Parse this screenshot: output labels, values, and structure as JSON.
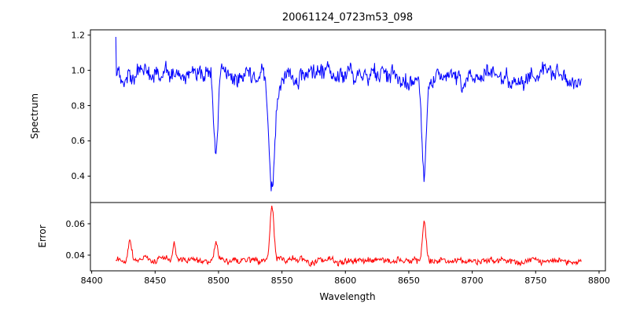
{
  "chart_data": {
    "type": "line",
    "title": "20061124_0723m53_098",
    "xlabel": "Wavelength",
    "legend": "none",
    "grid": false,
    "seed": 20061124,
    "x_axis": {
      "lim": [
        8399,
        8805
      ],
      "data_range": [
        8419,
        8786
      ],
      "step": 0.5,
      "ticks": [
        8400,
        8450,
        8500,
        8550,
        8600,
        8650,
        8700,
        8750,
        8800
      ]
    },
    "panels": [
      {
        "name": "spectrum",
        "ylabel": "Spectrum",
        "ylim": [
          0.25,
          1.23
        ],
        "yticks": [
          0.4,
          0.6,
          0.8,
          1.0,
          1.2
        ],
        "ytick_decimals": 1,
        "line_color": "#0000ff",
        "continuum": 0.97,
        "slope": -6e-05,
        "start_spike": 1.19,
        "noise": {
          "slow_amp": 0.05,
          "slow_phi": 0.85,
          "jitter": 0.07
        },
        "absorption_lines": [
          {
            "center": 8498.0,
            "depth": 0.47,
            "sigma": 1.6
          },
          {
            "center": 8542.1,
            "depth": 0.64,
            "sigma": 2.2
          },
          {
            "center": 8662.1,
            "depth": 0.58,
            "sigma": 1.8
          }
        ]
      },
      {
        "name": "error",
        "ylabel": "Error",
        "ylim": [
          0.03,
          0.0735
        ],
        "yticks": [
          0.04,
          0.06
        ],
        "ytick_decimals": 2,
        "line_color": "#ff0000",
        "baseline": 0.0365,
        "slope": -3e-06,
        "noise": {
          "slow_amp": 0.0018,
          "slow_phi": 0.8,
          "jitter": 0.003
        },
        "spikes": [
          {
            "center": 8430.0,
            "height": 0.012,
            "sigma": 1.2
          },
          {
            "center": 8465.0,
            "height": 0.01,
            "sigma": 1.2
          },
          {
            "center": 8498.0,
            "height": 0.013,
            "sigma": 1.3
          },
          {
            "center": 8542.1,
            "height": 0.035,
            "sigma": 1.5
          },
          {
            "center": 8662.1,
            "height": 0.024,
            "sigma": 1.4
          }
        ]
      }
    ]
  }
}
